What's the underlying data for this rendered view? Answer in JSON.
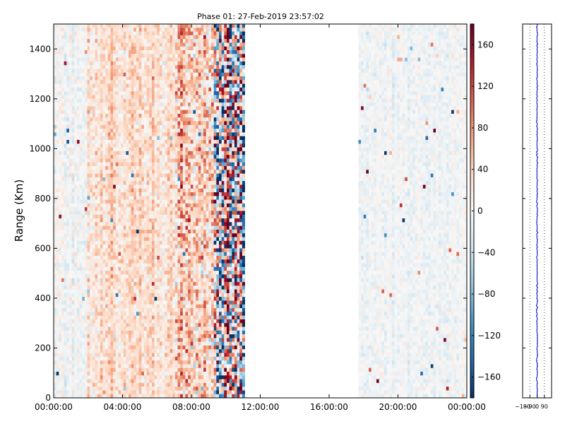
{
  "chart_data": [
    {
      "type": "heatmap",
      "title": "Phase 01: 27-Feb-2019 23:57:02",
      "xlabel": "",
      "ylabel": "Range (Km)",
      "xlim": [
        "00:00:00",
        "24:00:00"
      ],
      "ylim": [
        0,
        1500
      ],
      "xticks": [
        "00:00:00",
        "04:00:00",
        "08:00:00",
        "12:00:00",
        "16:00:00",
        "20:00:00",
        "00:00:00"
      ],
      "yticks": [
        0,
        200,
        400,
        600,
        800,
        1000,
        1200,
        1400
      ],
      "grid": false,
      "colormap": "RdBu_r",
      "colorbar": {
        "vmin": -180,
        "vmax": 180,
        "ticks": [
          -160,
          -120,
          -80,
          -40,
          0,
          40,
          80,
          120,
          160
        ]
      },
      "time_segments": [
        {
          "start": "00:00:00",
          "end": "02:00:00",
          "mean_phase": -5,
          "spread": 20
        },
        {
          "start": "02:00:00",
          "end": "07:00:00",
          "mean_phase": 30,
          "spread": 30
        },
        {
          "start": "07:00:00",
          "end": "09:15:00",
          "mean_phase": 50,
          "spread": 60
        },
        {
          "start": "09:15:00",
          "end": "11:10:00",
          "mean_phase": 0,
          "spread": 170
        },
        {
          "start": "11:10:00",
          "end": "17:45:00",
          "mean_phase": null,
          "spread": 0
        },
        {
          "start": "17:45:00",
          "end": "24:00:00",
          "mean_phase": -5,
          "spread": 15
        }
      ]
    },
    {
      "type": "line",
      "title": "",
      "xlim": [
        -180,
        180
      ],
      "xticks": [
        -180,
        -90,
        0,
        90
      ],
      "ylim": [
        0,
        1500
      ],
      "grid": true,
      "series": [
        {
          "color": "#0000cc",
          "mean_value": 0,
          "jitter": 6
        }
      ]
    }
  ]
}
